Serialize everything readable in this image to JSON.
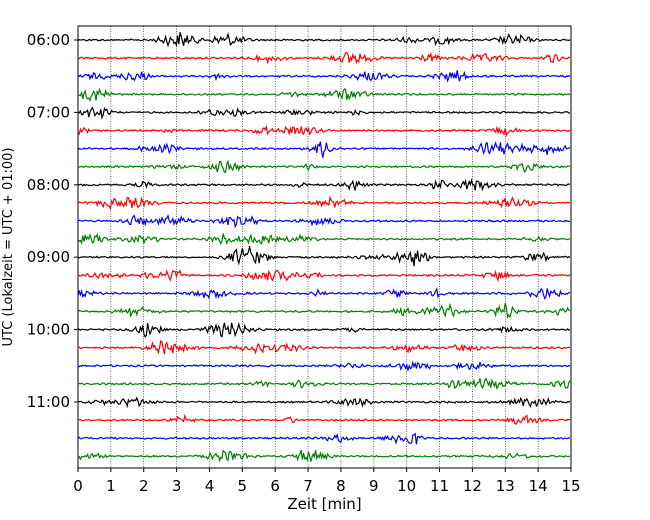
{
  "chart_data": {
    "type": "line",
    "title": "",
    "xlabel": "Zeit  [min]",
    "ylabel": "UTC (Lokalzeit = UTC + 01:00)",
    "xlim": [
      0,
      15
    ],
    "x_ticks": [
      "0",
      "1",
      "2",
      "3",
      "4",
      "5",
      "6",
      "7",
      "8",
      "9",
      "10",
      "11",
      "12",
      "13",
      "14",
      "15"
    ],
    "y_tick_labels": [
      "06:00",
      "07:00",
      "08:00",
      "09:00",
      "10:00",
      "11:00"
    ],
    "grid": "vertical dotted lines at each minute",
    "legend": "none",
    "trace_interval_min": 15,
    "start_time_utc": "06:00",
    "trace_colors": [
      "#000000",
      "#ff0000",
      "#0000ff",
      "#008000"
    ],
    "trace_count": 24
  }
}
